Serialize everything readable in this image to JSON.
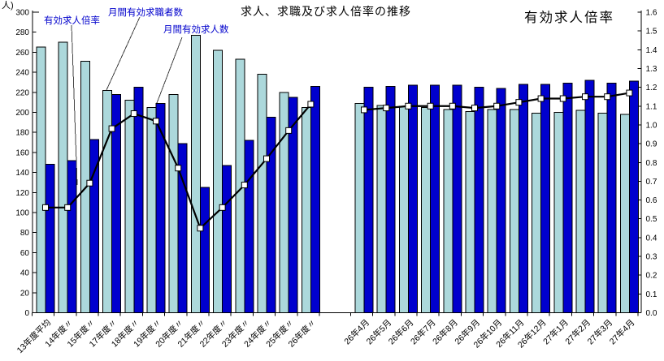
{
  "title": "求人、求職及び求人倍率の推移",
  "left_axis": {
    "unit": "人)",
    "min": 0,
    "max": 300,
    "step": 20,
    "ticks": [
      0,
      20,
      40,
      60,
      80,
      100,
      120,
      140,
      160,
      180,
      200,
      220,
      240,
      260,
      280,
      300
    ]
  },
  "right_axis": {
    "title": "有効求人倍率",
    "min": 0,
    "max": 1.6,
    "step": 0.1,
    "ticks": [
      "0.0",
      "0.1",
      "0.2",
      "0.3",
      "0.4",
      "0.5",
      "0.6",
      "0.7",
      "0.8",
      "0.9",
      "1.0",
      "1.1",
      "1.2",
      "1.3",
      "1.4",
      "1.5",
      "1.6"
    ]
  },
  "annotations": {
    "ratio_label": "有効求人倍率",
    "seekers_label": "月間有効求職者数",
    "offers_label": "月間有効求人数"
  },
  "colors": {
    "seekers_bar": "#ACD8DB",
    "offers_bar": "#0000CE",
    "bar_border": "#000000",
    "ratio_line": "#000000",
    "marker_fill": "#FFFFFF",
    "annotation_text": "#0000CC",
    "axis": "#000000"
  },
  "chart_data": {
    "type": "bar",
    "combo": "grouped bars (left axis, 人) + line with square markers (right axis, 倍率)",
    "grid": false,
    "legend_position": "inline annotations with leader lines",
    "left_axis_range": [
      0,
      300
    ],
    "right_axis_range": [
      0.0,
      1.6
    ],
    "sections": [
      {
        "name": "annual",
        "categories": [
          "13年度平均",
          "14年度〃",
          "15年度〃",
          "17年度〃",
          "18年度〃",
          "19年度〃",
          "20年度〃",
          "21年度〃",
          "22年度〃",
          "23年度〃",
          "24年度〃",
          "25年度〃",
          "26年度〃"
        ],
        "series": [
          {
            "name": "月間有効求職者数",
            "role": "bar",
            "axis": "left",
            "values": [
              265,
              270,
              251,
              222,
              212,
              205,
              218,
              277,
              262,
              253,
              238,
              220,
              205
            ]
          },
          {
            "name": "月間有効求人数",
            "role": "bar",
            "axis": "left",
            "values": [
              148,
              152,
              173,
              218,
              225,
              209,
              169,
              125,
              147,
              172,
              195,
              215,
              226
            ]
          },
          {
            "name": "有効求人倍率",
            "role": "line",
            "axis": "right",
            "values": [
              0.56,
              0.56,
              0.69,
              0.98,
              1.06,
              1.02,
              0.77,
              0.45,
              0.56,
              0.68,
              0.82,
              0.97,
              1.11
            ]
          }
        ]
      },
      {
        "name": "monthly",
        "categories": [
          "26年4月",
          "26年5月",
          "26年6月",
          "26年7月",
          "26年8月",
          "26年9月",
          "26年10月",
          "26年11月",
          "26年12月",
          "27年1月",
          "27年2月",
          "27年3月",
          "27年4月"
        ],
        "series": [
          {
            "name": "月間有効求職者数",
            "role": "bar",
            "axis": "left",
            "values": [
              209,
              207,
              206,
              205,
              203,
              201,
              203,
              203,
              199,
              200,
              202,
              199,
              198
            ]
          },
          {
            "name": "月間有効求人数",
            "role": "bar",
            "axis": "left",
            "values": [
              225,
              226,
              227,
              227,
              227,
              225,
              224,
              228,
              228,
              229,
              232,
              229,
              231
            ]
          },
          {
            "name": "有効求人倍率",
            "role": "line",
            "axis": "right",
            "values": [
              1.08,
              1.09,
              1.1,
              1.1,
              1.1,
              1.09,
              1.1,
              1.12,
              1.14,
              1.14,
              1.15,
              1.15,
              1.17
            ]
          }
        ]
      }
    ]
  }
}
